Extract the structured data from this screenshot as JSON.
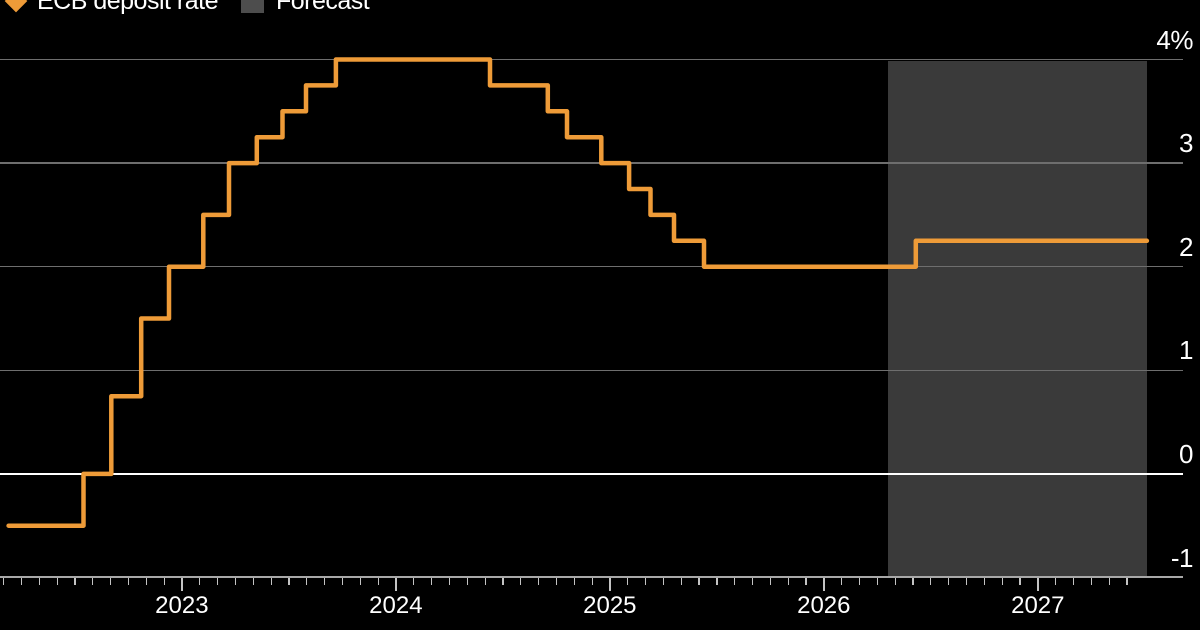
{
  "legend": {
    "items": [
      {
        "label": "ECB deposit rate",
        "marker": "diamond",
        "color": "#EE9B38"
      },
      {
        "label": "Forecast",
        "marker": "square",
        "color": "#4D4D4D"
      }
    ]
  },
  "chart_data": {
    "type": "line",
    "line_style": "step-after",
    "title": "",
    "xlabel": "",
    "ylabel": "",
    "series": [
      {
        "name": "ECB deposit rate",
        "unit": "%",
        "points": [
          [
            2022.19,
            -0.5
          ],
          [
            2022.54,
            0.0
          ],
          [
            2022.67,
            0.75
          ],
          [
            2022.81,
            1.5
          ],
          [
            2022.94,
            2.0
          ],
          [
            2023.1,
            2.5
          ],
          [
            2023.22,
            3.0
          ],
          [
            2023.35,
            3.25
          ],
          [
            2023.47,
            3.5
          ],
          [
            2023.58,
            3.75
          ],
          [
            2023.72,
            4.0
          ],
          [
            2024.44,
            3.75
          ],
          [
            2024.71,
            3.5
          ],
          [
            2024.8,
            3.25
          ],
          [
            2024.96,
            3.0
          ],
          [
            2025.09,
            2.75
          ],
          [
            2025.19,
            2.5
          ],
          [
            2025.3,
            2.25
          ],
          [
            2025.44,
            2.0
          ],
          [
            2026.43,
            2.25
          ],
          [
            2027.51,
            2.25
          ]
        ]
      }
    ],
    "forecast_region": {
      "label": "Forecast",
      "start": 2026.3,
      "end": 2027.51
    },
    "x_axis": {
      "domain": [
        2022.15,
        2027.515
      ],
      "tick_years": [
        2023,
        2024,
        2025,
        2026,
        2027
      ],
      "year_labels": [
        "2023",
        "2024",
        "2025",
        "2026",
        "2027"
      ],
      "minor_tick_interval_months": 1,
      "minor_tick_range": [
        2022.167,
        2027.42
      ]
    },
    "y_axis": {
      "domain": [
        -1,
        4
      ],
      "ticks": [
        {
          "value": 4,
          "label": "4%"
        },
        {
          "value": 3,
          "label": "3"
        },
        {
          "value": 2,
          "label": "2"
        },
        {
          "value": 1,
          "label": "1"
        },
        {
          "value": 0,
          "label": "0"
        },
        {
          "value": -1,
          "label": "-1"
        }
      ],
      "zero_line_emphasized": true,
      "position": "right"
    },
    "colors": {
      "line": "#EE9B38",
      "forecast_fill": "#3A3A3A",
      "legend_forecast_swatch": "#4D4D4D",
      "grid": "#6E6E6E",
      "zero_line": "#FFFFFF",
      "axis_line": "#A8A8A8",
      "tick": "#C4C4C4",
      "text": "#FFFFFF",
      "background": "#000000"
    }
  }
}
